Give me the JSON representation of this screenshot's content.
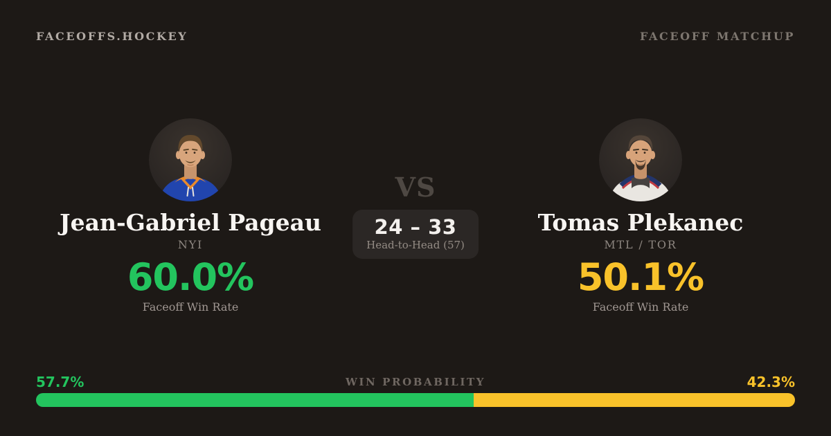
{
  "page": {
    "background": "#1d1916"
  },
  "header": {
    "brand": "FACEOFFS.HOCKEY",
    "label": "FACEOFF MATCHUP"
  },
  "players": {
    "left": {
      "name": "Jean-Gabriel Pageau",
      "team": "NYI",
      "win_rate": "60.0%",
      "rate_label": "Faceoff Win Rate",
      "accent": "#23c45e",
      "photo": "player-headshot-blue-orange-jersey"
    },
    "right": {
      "name": "Tomas Plekanec",
      "team": "MTL / TOR",
      "win_rate": "50.1%",
      "rate_label": "Faceoff Win Rate",
      "accent": "#f9c22a",
      "photo": "player-headshot-white-navy-jersey"
    }
  },
  "center": {
    "vs": "VS",
    "h2h_score": "24 – 33",
    "h2h_label": "Head-to-Head (57)"
  },
  "win_probability": {
    "label": "WIN PROBABILITY",
    "left_pct": "57.7%",
    "right_pct": "42.3%",
    "left_value": 57.7,
    "right_value": 42.3,
    "left_color": "#23c45e",
    "right_color": "#f9c22a"
  },
  "chart_data": {
    "type": "bar",
    "title": "WIN PROBABILITY",
    "categories": [
      "Jean-Gabriel Pageau",
      "Tomas Plekanec"
    ],
    "values": [
      57.7,
      42.3
    ],
    "colors": [
      "#23c45e",
      "#f9c22a"
    ],
    "xlabel": "",
    "ylabel": "Win probability (%)",
    "ylim": [
      0,
      100
    ]
  }
}
